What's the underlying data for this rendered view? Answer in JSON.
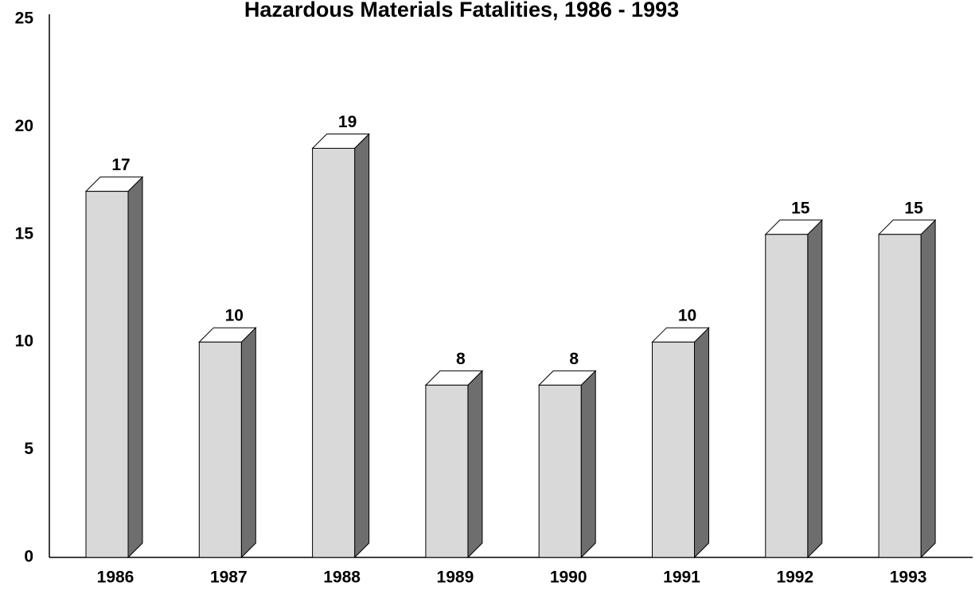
{
  "chart_data": {
    "type": "bar3d",
    "title": "Hazardous Materials Fatalities, 1986 - 1993",
    "categories": [
      "1986",
      "1987",
      "1988",
      "1989",
      "1990",
      "1991",
      "1992",
      "1993"
    ],
    "values": [
      17,
      10,
      19,
      8,
      8,
      10,
      15,
      15
    ],
    "color": "#d9d9d9",
    "side_color": "#6e6e6e",
    "top_color": "#ffffff",
    "ylim": [
      0,
      25
    ],
    "yticks": [
      0,
      5,
      10,
      15,
      20,
      25
    ],
    "grid": false
  }
}
